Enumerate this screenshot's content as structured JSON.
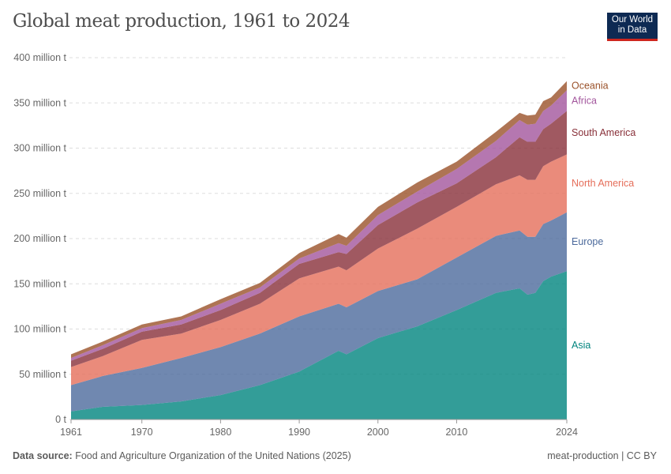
{
  "header": {
    "title": "Global meat production, 1961 to 2024",
    "logo": "Our World in Data"
  },
  "footer": {
    "source_label": "Data source:",
    "source": "Food and Agriculture Organization of the United Nations (2025)",
    "license": "meat-production | CC BY"
  },
  "chart_data": {
    "type": "area",
    "stacked": true,
    "title": "Global meat production, 1961 to 2024",
    "ylabel": "",
    "xlabel": "",
    "ylim": [
      0,
      400
    ],
    "xlim": [
      1961,
      2024
    ],
    "y_ticks": [
      0,
      50,
      100,
      150,
      200,
      250,
      300,
      350,
      400
    ],
    "y_tick_labels": [
      "0 t",
      "50 million t",
      "100 million t",
      "150 million t",
      "200 million t",
      "250 million t",
      "300 million t",
      "350 million t",
      "400 million t"
    ],
    "x_ticks": [
      1961,
      1970,
      1980,
      1990,
      2000,
      2010,
      2024
    ],
    "x_tick_labels": [
      "1961",
      "1970",
      "1980",
      "1990",
      "2000",
      "2010",
      "2024"
    ],
    "grid": "horizontal-dashed",
    "legend": "right-inline-labels",
    "x": [
      1961,
      1965,
      1970,
      1975,
      1980,
      1985,
      1990,
      1995,
      1996,
      2000,
      2005,
      2010,
      2015,
      2018,
      2019,
      2020,
      2021,
      2022,
      2024
    ],
    "series": [
      {
        "name": "Asia",
        "color": "#00847e",
        "values": [
          9,
          14,
          16,
          20,
          27,
          38,
          53,
          76,
          72,
          90,
          103,
          121,
          140,
          145,
          138,
          140,
          153,
          158,
          164
        ]
      },
      {
        "name": "Europe",
        "color": "#4c6a9c",
        "values": [
          29,
          34,
          41,
          48,
          53,
          57,
          61,
          52,
          52,
          52,
          52,
          58,
          63,
          64,
          64,
          62,
          63,
          62,
          65
        ]
      },
      {
        "name": "North America",
        "color": "#e56e5a",
        "values": [
          20,
          22,
          31,
          27,
          30,
          33,
          42,
          41,
          41,
          47,
          56,
          56,
          57,
          61,
          63,
          63,
          64,
          65,
          64
        ]
      },
      {
        "name": "South America",
        "color": "#883039",
        "values": [
          7,
          8,
          9,
          10,
          11,
          12,
          16,
          16,
          18,
          26,
          29,
          26,
          30,
          42,
          42,
          42,
          41,
          42,
          48
        ]
      },
      {
        "name": "Africa",
        "color": "#a2559c",
        "values": [
          3,
          4,
          4,
          5,
          7,
          6,
          6,
          10,
          9,
          11,
          12,
          16,
          18,
          19,
          19,
          20,
          20,
          20,
          23
        ]
      },
      {
        "name": "Oceania",
        "color": "#9a5129",
        "values": [
          4,
          4,
          4,
          4,
          5,
          5,
          6,
          10,
          9,
          9,
          10,
          8,
          10,
          8,
          10,
          10,
          11,
          9,
          10
        ]
      }
    ]
  }
}
